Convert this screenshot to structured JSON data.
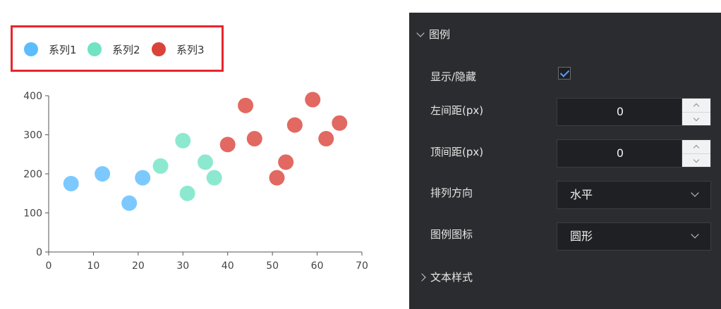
{
  "chart_data": {
    "type": "scatter",
    "xlim": [
      0,
      70
    ],
    "ylim": [
      0,
      400
    ],
    "x_ticks": [
      "0",
      "10",
      "20",
      "30",
      "40",
      "50",
      "60",
      "70"
    ],
    "y_ticks": [
      "0",
      "100",
      "200",
      "300",
      "400"
    ],
    "legend": {
      "placement": "top-left",
      "icon": "circle"
    },
    "series": [
      {
        "name": "系列1",
        "color": "#5bbcff",
        "points": [
          [
            5,
            175
          ],
          [
            12,
            200
          ],
          [
            18,
            125
          ],
          [
            21,
            190
          ]
        ]
      },
      {
        "name": "系列2",
        "color": "#6fe3c3",
        "points": [
          [
            25,
            220
          ],
          [
            30,
            285
          ],
          [
            31,
            150
          ],
          [
            35,
            230
          ],
          [
            37,
            190
          ]
        ]
      },
      {
        "name": "系列3",
        "color": "#d9433a",
        "points": [
          [
            40,
            275
          ],
          [
            44,
            375
          ],
          [
            46,
            290
          ],
          [
            51,
            190
          ],
          [
            53,
            230
          ],
          [
            55,
            325
          ],
          [
            59,
            390
          ],
          [
            62,
            290
          ],
          [
            65,
            330
          ]
        ]
      }
    ]
  },
  "panel": {
    "legend_section": "图例",
    "show_hide": {
      "label": "显示/隐藏",
      "checked": true
    },
    "left_margin": {
      "label": "左间距(px)",
      "value": "0"
    },
    "top_margin": {
      "label": "顶间距(px)",
      "value": "0"
    },
    "orientation": {
      "label": "排列方向",
      "value": "水平"
    },
    "legend_icon": {
      "label": "图例图标",
      "value": "圆形"
    },
    "text_style_section": "文本样式"
  }
}
